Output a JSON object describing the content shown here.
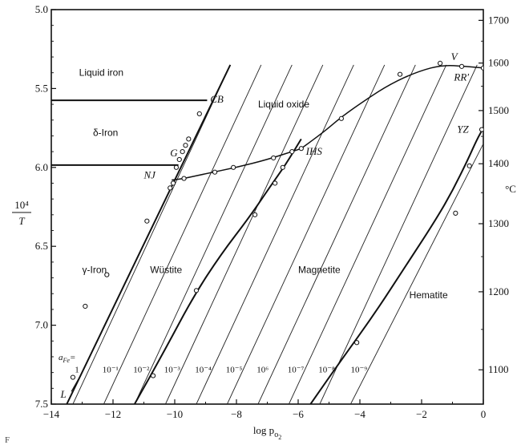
{
  "chart_data": {
    "type": "line",
    "x_axis": {
      "label": "log p",
      "label_sub": "o",
      "label_subsub": "2",
      "range": [
        -14,
        0
      ],
      "ticks": [
        -14,
        -12,
        -10,
        -8,
        -6,
        -4,
        -2,
        0
      ],
      "tick_labels": [
        "−14",
        "−12",
        "−10",
        "−8",
        "−6",
        "−4",
        "−2",
        "0"
      ]
    },
    "y_axis_left": {
      "label_num": "10⁴",
      "label_den": "T",
      "range": [
        5.0,
        7.5
      ],
      "inverted": true,
      "ticks": [
        5.0,
        5.5,
        6.0,
        6.5,
        7.0,
        7.5
      ],
      "tick_labels": [
        "5.0",
        "5.5",
        "6.0",
        "6.5",
        "7.0",
        "7.5"
      ]
    },
    "y_axis_right": {
      "label": "°C",
      "ticks": [
        1700,
        1600,
        1500,
        1400,
        1300,
        1200,
        1100
      ],
      "tick_labels": [
        "1700",
        "1600",
        "1500",
        "1400",
        "1300",
        "1200",
        "1100"
      ]
    },
    "horizontal_lines": [
      {
        "y": 5.575,
        "x_from": -14,
        "x_to": -8.95
      },
      {
        "y": 5.985,
        "x_from": -14,
        "x_to": -9.88
      }
    ],
    "activity_lines": [
      {
        "label": "1",
        "x_at_bottom": -13.3,
        "x_at_top": -8.2,
        "y_top": 5.35
      },
      {
        "label": "10⁻¹",
        "x_at_bottom": -12.3,
        "x_at_top": -7.2,
        "y_top": 5.35
      },
      {
        "label": "10⁻²",
        "x_at_bottom": -11.3,
        "x_at_top": -6.2,
        "y_top": 5.35
      },
      {
        "label": "10⁻³",
        "x_at_bottom": -10.3,
        "x_at_top": -5.2,
        "y_top": 5.35
      },
      {
        "label": "10⁻⁴",
        "x_at_bottom": -9.3,
        "x_at_top": -4.2,
        "y_top": 5.35
      },
      {
        "label": "10⁻⁵",
        "x_at_bottom": -8.3,
        "x_at_top": -3.2,
        "y_top": 5.35
      },
      {
        "label": "10⁶",
        "x_at_bottom": -7.3,
        "x_at_top": -2.2,
        "y_top": 5.35
      },
      {
        "label": "10⁻⁷",
        "x_at_bottom": -6.3,
        "x_at_top": -1.2,
        "y_top": 5.35
      },
      {
        "label": "10⁻⁸",
        "x_at_bottom": -5.3,
        "x_at_top": -0.2,
        "y_top": 5.35
      },
      {
        "label": "10⁻⁹",
        "x_at_bottom": -4.3,
        "x_at_top": 0.0,
        "y_top": 5.85
      }
    ],
    "activity_prefix": "a",
    "activity_prefix_sub": "Fe",
    "activity_prefix_eq": "=",
    "boundaries": [
      {
        "name": "iron-wustite",
        "points": [
          [
            -13.5,
            7.5
          ],
          [
            -8.2,
            5.35
          ]
        ],
        "width": 2.0
      },
      {
        "name": "wustite-magnetite",
        "points": [
          [
            -11.3,
            7.5
          ],
          [
            -10.3,
            7.15
          ],
          [
            -9.4,
            6.82
          ],
          [
            -8.5,
            6.55
          ],
          [
            -7.6,
            6.32
          ],
          [
            -6.9,
            6.12
          ],
          [
            -6.4,
            5.98
          ],
          [
            -5.9,
            5.82
          ]
        ],
        "width": 2.0
      },
      {
        "name": "magnetite-hematite",
        "points": [
          [
            -5.6,
            7.5
          ],
          [
            -4.6,
            7.22
          ],
          [
            -3.5,
            6.92
          ],
          [
            -2.5,
            6.62
          ],
          [
            -1.6,
            6.35
          ],
          [
            -1.0,
            6.15
          ],
          [
            -0.5,
            5.95
          ],
          [
            -0.2,
            5.82
          ],
          [
            0.0,
            5.75
          ]
        ],
        "width": 2.0
      },
      {
        "name": "liquid-oxide-lower",
        "points": [
          [
            -10.1,
            6.08
          ],
          [
            -9.7,
            6.07
          ],
          [
            -9.0,
            6.04
          ],
          [
            -8.0,
            6.0
          ],
          [
            -7.0,
            5.95
          ],
          [
            -6.2,
            5.9
          ],
          [
            -5.9,
            5.88
          ]
        ],
        "width": 1.5
      },
      {
        "name": "liquid-oxide-upper",
        "points": [
          [
            -5.9,
            5.88
          ],
          [
            -5.2,
            5.78
          ],
          [
            -4.6,
            5.68
          ],
          [
            -3.8,
            5.57
          ],
          [
            -3.0,
            5.47
          ],
          [
            -2.1,
            5.39
          ],
          [
            -1.3,
            5.35
          ],
          [
            -0.6,
            5.36
          ],
          [
            0.0,
            5.37
          ]
        ],
        "width": 1.5
      }
    ],
    "data_points": [
      [
        -9.2,
        5.66
      ],
      [
        -9.55,
        5.82
      ],
      [
        -9.65,
        5.86
      ],
      [
        -9.75,
        5.9
      ],
      [
        -9.85,
        5.95
      ],
      [
        -9.95,
        6.0
      ],
      [
        -10.05,
        6.1
      ],
      [
        -10.15,
        6.13
      ],
      [
        -10.9,
        6.34
      ],
      [
        -12.2,
        6.68
      ],
      [
        -12.9,
        6.88
      ],
      [
        -13.3,
        7.33
      ],
      [
        -9.7,
        6.07
      ],
      [
        -8.7,
        6.03
      ],
      [
        -8.1,
        6.0
      ],
      [
        -6.8,
        5.94
      ],
      [
        -6.2,
        5.9
      ],
      [
        -5.9,
        5.88
      ],
      [
        -4.6,
        5.69
      ],
      [
        -2.7,
        5.41
      ],
      [
        -1.4,
        5.34
      ],
      [
        -0.7,
        5.36
      ],
      [
        0.0,
        5.37
      ],
      [
        -6.5,
        6.0
      ],
      [
        -6.75,
        6.1
      ],
      [
        -7.4,
        6.3
      ],
      [
        -9.3,
        6.78
      ],
      [
        -10.7,
        7.32
      ],
      [
        -4.1,
        7.11
      ],
      [
        -0.9,
        6.29
      ],
      [
        -0.45,
        5.99
      ],
      [
        -0.05,
        5.76
      ]
    ],
    "point_labels": [
      {
        "text": "CB",
        "x": -8.85,
        "y": 5.59
      },
      {
        "text": "G",
        "x": -10.15,
        "y": 5.93
      },
      {
        "text": "NJ",
        "x": -11.0,
        "y": 6.07
      },
      {
        "text": "IHS",
        "x": -5.75,
        "y": 5.92
      },
      {
        "text": "V",
        "x": -1.05,
        "y": 5.32
      },
      {
        "text": "RR′",
        "x": -0.95,
        "y": 5.45
      },
      {
        "text": "YZ",
        "x": -0.85,
        "y": 5.78
      },
      {
        "text": "L",
        "x": -13.7,
        "y": 7.46
      }
    ],
    "region_labels": [
      {
        "text": "Liquid iron",
        "x": -13.1,
        "y": 5.42
      },
      {
        "text": "δ-Iron",
        "x": -12.65,
        "y": 5.8
      },
      {
        "text": "Liquid oxide",
        "x": -7.3,
        "y": 5.62
      },
      {
        "text": "γ-Iron",
        "x": -13.0,
        "y": 6.67
      },
      {
        "text": "Wüstite",
        "x": -10.8,
        "y": 6.67
      },
      {
        "text": "Magnetite",
        "x": -6.0,
        "y": 6.67
      },
      {
        "text": "Hematite",
        "x": -2.4,
        "y": 6.83
      }
    ],
    "caption": "F"
  }
}
